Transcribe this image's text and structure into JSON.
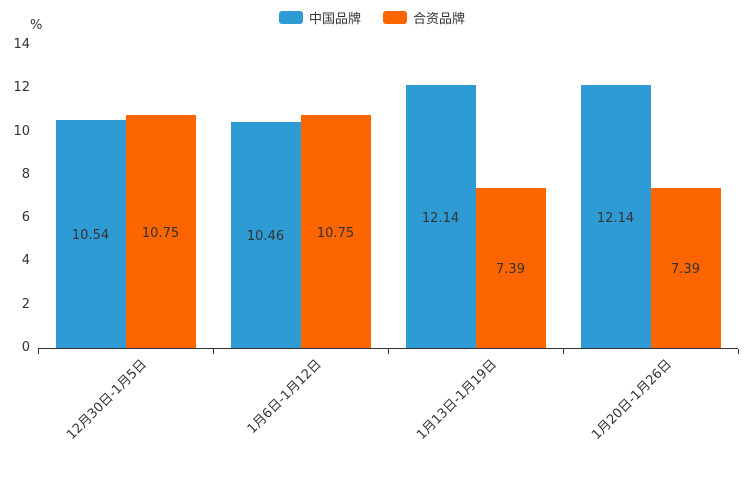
{
  "chart_data": {
    "type": "bar",
    "categories": [
      "12月30日-1月5日",
      "1月6日-1月12日",
      "1月13日-1月19日",
      "1月20日-1月26日"
    ],
    "series": [
      {
        "name": "中国品牌",
        "color": "#2E9BD5",
        "values": [
          10.54,
          10.46,
          12.14,
          12.14
        ]
      },
      {
        "name": "合资品牌",
        "color": "#FC6500",
        "values": [
          10.75,
          10.75,
          7.39,
          7.39
        ]
      }
    ],
    "title": "",
    "xlabel": "",
    "ylabel": "%",
    "ylim": [
      0,
      14
    ],
    "ytick_step": 2,
    "grid": false,
    "legend_position": "top",
    "bar_value_labels_shown": true
  },
  "style": {
    "axis_color": "#333333",
    "label_color": "#333333",
    "background": "#ffffff"
  }
}
